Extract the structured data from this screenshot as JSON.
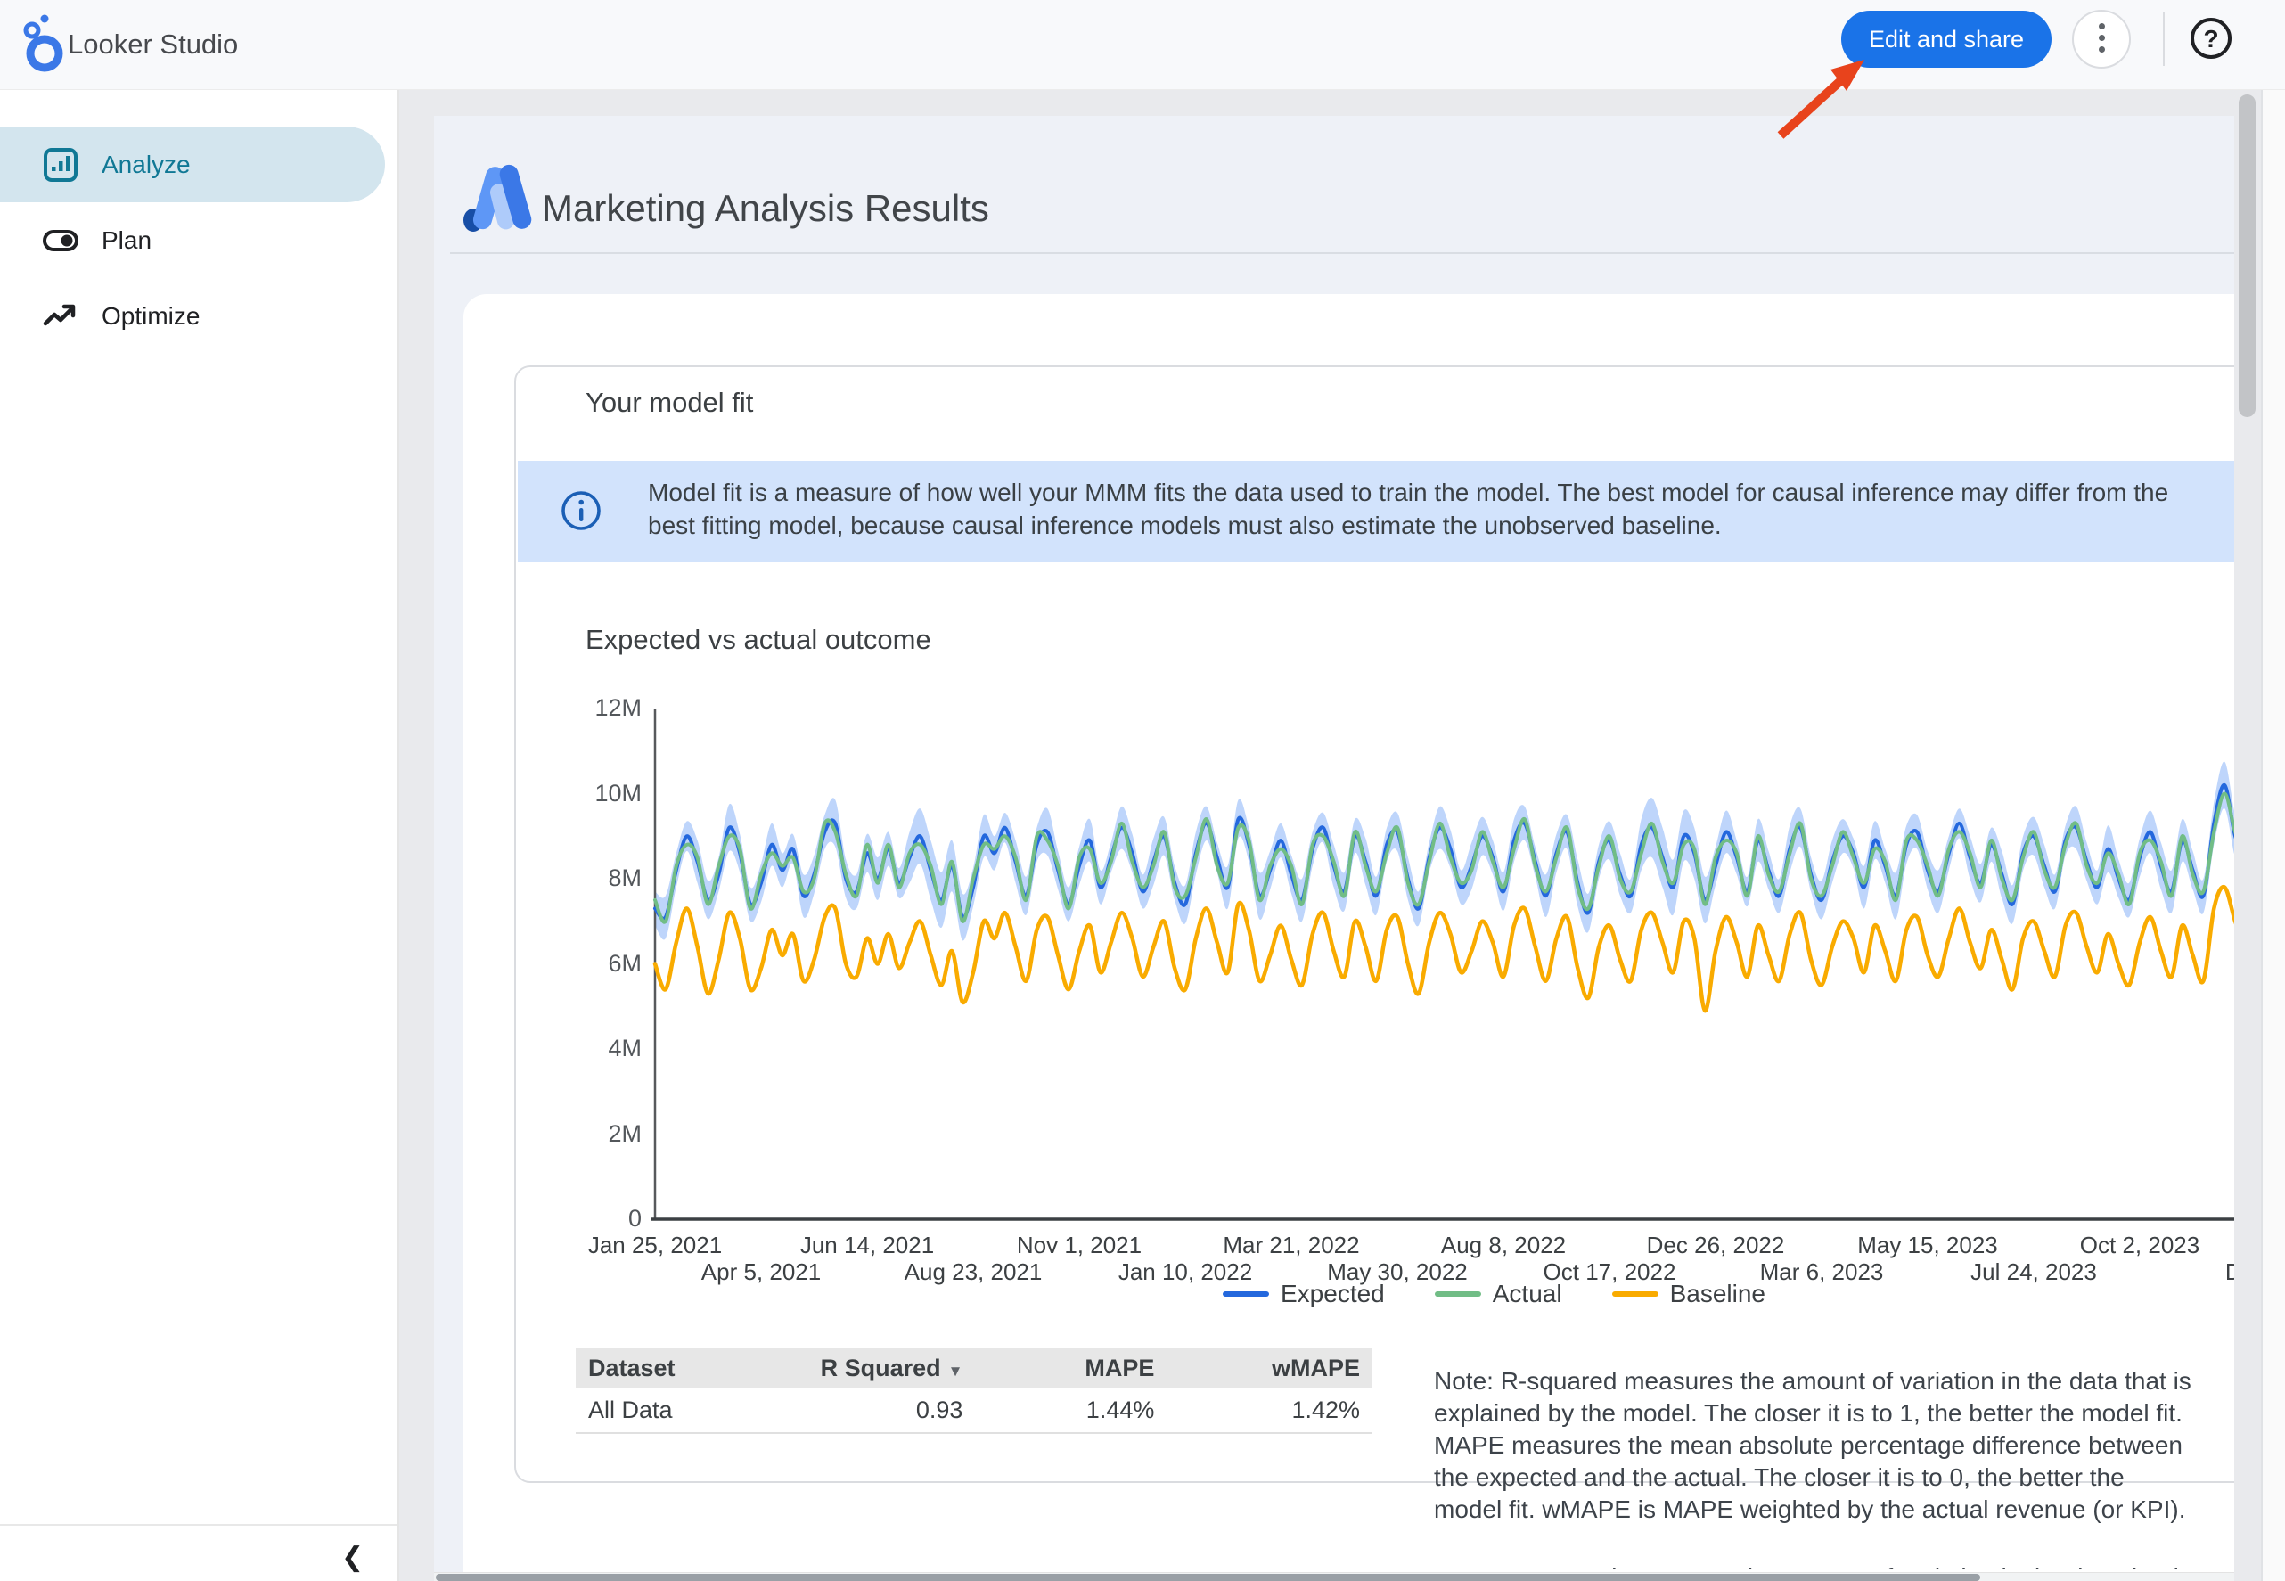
{
  "app": {
    "brand": "Looker Studio",
    "edit_share_label": "Edit and share",
    "help_glyph": "?",
    "accent_blue": "#1a73e8"
  },
  "sidebar": {
    "items": [
      {
        "label": "Analyze",
        "selected": true
      },
      {
        "label": "Plan",
        "selected": false
      },
      {
        "label": "Optimize",
        "selected": false
      }
    ],
    "selected_color": "#107895",
    "selected_bg": "#d3e5ee"
  },
  "report": {
    "title": "Marketing Analysis Results",
    "card_title": "Your model fit",
    "info_banner_lines": [
      "Model fit is a measure of how well your MMM fits the data used to train the model. The best model for causal inference may differ from the",
      "best fitting model, because causal inference models must also estimate the unobserved baseline."
    ],
    "section_title": "Expected vs actual outcome",
    "note_text": "Note: R-squared measures the amount of variation in the data that is explained by the model. The closer it is to 1, the better the model fit. MAPE measures the mean absolute percentage difference between the expected and the actual. The closer it is to 0, the better the model fit. wMAPE is MAPE weighted by the actual revenue (or KPI)."
  },
  "table": {
    "headers": [
      "Dataset",
      "R Squared",
      "MAPE",
      "wMAPE"
    ],
    "sort_column": "R Squared",
    "sort_glyph": "▼",
    "rows": [
      {
        "dataset": "All Data",
        "r_squared": "0.93",
        "mape": "1.44%",
        "wmape": "1.42%"
      }
    ]
  },
  "chart_data": {
    "type": "line",
    "title": "Expected vs actual outcome",
    "x_unit": "week",
    "ylim": [
      0,
      12000000
    ],
    "ytick_labels": [
      "0",
      "2M",
      "4M",
      "6M",
      "8M",
      "10M",
      "12M"
    ],
    "grid": false,
    "legend_position": "bottom",
    "values_unit": "millions",
    "x_ticks": [
      {
        "i": 0,
        "label": "Jan 25, 2021",
        "row": 1
      },
      {
        "i": 10,
        "label": "Apr 5, 2021",
        "row": 2
      },
      {
        "i": 20,
        "label": "Jun 14, 2021",
        "row": 1
      },
      {
        "i": 30,
        "label": "Aug 23, 2021",
        "row": 2
      },
      {
        "i": 40,
        "label": "Nov 1, 2021",
        "row": 1
      },
      {
        "i": 50,
        "label": "Jan 10, 2022",
        "row": 2
      },
      {
        "i": 60,
        "label": "Mar 21, 2022",
        "row": 1
      },
      {
        "i": 70,
        "label": "May 30, 2022",
        "row": 2
      },
      {
        "i": 80,
        "label": "Aug 8, 2022",
        "row": 1
      },
      {
        "i": 90,
        "label": "Oct 17, 2022",
        "row": 2
      },
      {
        "i": 100,
        "label": "Dec 26, 2022",
        "row": 1
      },
      {
        "i": 110,
        "label": "Mar 6, 2023",
        "row": 2
      },
      {
        "i": 120,
        "label": "May 15, 2023",
        "row": 1
      },
      {
        "i": 130,
        "label": "Jul 24, 2023",
        "row": 2
      },
      {
        "i": 140,
        "label": "Oct 2, 2023",
        "row": 1
      },
      {
        "i": 150,
        "label": "Dec",
        "row": 2
      }
    ],
    "series": [
      {
        "name": "Expected",
        "color": "#2468dd",
        "values": [
          7.3,
          7.1,
          8.2,
          9.0,
          8.4,
          7.5,
          8.1,
          9.2,
          8.6,
          7.4,
          7.9,
          8.8,
          8.2,
          8.7,
          7.6,
          8.1,
          9.1,
          9.3,
          8.0,
          7.7,
          8.6,
          8.0,
          8.7,
          7.9,
          8.5,
          9.0,
          8.2,
          7.5,
          8.3,
          7.1,
          7.8,
          9.0,
          8.6,
          9.2,
          8.4,
          7.6,
          8.8,
          9.1,
          8.2,
          7.4,
          8.3,
          8.9,
          7.8,
          8.5,
          9.2,
          8.6,
          7.7,
          8.4,
          9.0,
          7.9,
          7.4,
          8.6,
          9.3,
          8.5,
          7.8,
          9.4,
          8.8,
          7.6,
          8.2,
          8.9,
          8.1,
          7.5,
          8.7,
          9.2,
          8.3,
          7.7,
          9.0,
          8.4,
          7.6,
          8.8,
          9.1,
          8.0,
          7.3,
          8.5,
          9.2,
          8.7,
          7.8,
          8.3,
          9.0,
          8.5,
          7.7,
          8.9,
          9.3,
          8.4,
          7.6,
          8.6,
          9.1,
          7.9,
          7.2,
          8.4,
          8.9,
          8.1,
          7.6,
          8.8,
          9.2,
          8.5,
          7.8,
          9.0,
          8.6,
          7.5,
          8.3,
          9.1,
          8.5,
          7.7,
          8.9,
          8.2,
          7.6,
          8.7,
          9.2,
          8.1,
          7.5,
          8.4,
          9.0,
          8.6,
          7.8,
          8.9,
          8.3,
          7.6,
          8.8,
          9.1,
          8.2,
          7.7,
          8.6,
          9.3,
          8.5,
          7.9,
          8.8,
          8.1,
          7.4,
          8.6,
          9.0,
          8.3,
          7.7,
          8.9,
          9.2,
          8.4,
          7.8,
          8.7,
          8.0,
          7.5,
          8.5,
          9.1,
          8.3,
          7.7,
          8.9,
          8.2,
          7.6,
          9.3,
          10.2,
          9.0,
          8.6,
          8.8
        ]
      },
      {
        "name": "Actual",
        "color": "#71bd86",
        "values": [
          7.5,
          7.0,
          8.3,
          8.8,
          8.5,
          7.4,
          8.3,
          9.0,
          8.7,
          7.3,
          8.1,
          8.6,
          8.3,
          8.5,
          7.7,
          8.0,
          9.3,
          9.1,
          8.1,
          7.6,
          8.8,
          7.9,
          8.8,
          7.8,
          8.6,
          8.8,
          8.3,
          7.4,
          8.4,
          7.0,
          8.0,
          8.8,
          8.7,
          9.0,
          8.5,
          7.5,
          9.0,
          8.9,
          8.3,
          7.3,
          8.5,
          8.7,
          7.9,
          8.4,
          9.3,
          8.4,
          7.8,
          8.3,
          9.1,
          7.8,
          7.6,
          8.5,
          9.4,
          8.3,
          7.9,
          9.2,
          8.9,
          7.5,
          8.3,
          8.7,
          8.3,
          7.4,
          8.8,
          9.0,
          8.4,
          7.6,
          9.1,
          8.3,
          7.7,
          8.6,
          9.2,
          7.9,
          7.4,
          8.4,
          9.3,
          8.5,
          7.9,
          8.2,
          9.1,
          8.4,
          7.8,
          8.7,
          9.4,
          8.3,
          7.7,
          8.5,
          9.2,
          7.8,
          7.3,
          8.3,
          9.0,
          8.0,
          7.7,
          8.6,
          9.3,
          8.4,
          7.9,
          8.8,
          8.7,
          7.4,
          8.5,
          8.9,
          8.6,
          7.6,
          9.0,
          8.1,
          7.7,
          8.6,
          9.3,
          8.0,
          7.6,
          8.3,
          9.1,
          8.5,
          7.9,
          8.7,
          8.4,
          7.5,
          8.9,
          8.9,
          8.3,
          7.6,
          8.7,
          9.1,
          8.6,
          7.8,
          8.9,
          8.0,
          7.5,
          8.5,
          9.1,
          8.2,
          7.8,
          8.8,
          9.3,
          8.3,
          7.9,
          8.6,
          8.1,
          7.4,
          8.6,
          8.9,
          8.4,
          7.6,
          9.0,
          8.1,
          7.7,
          9.1,
          10.0,
          9.1,
          8.5,
          8.9
        ]
      },
      {
        "name": "Baseline",
        "color": "#f9ab00",
        "values": [
          6.0,
          5.4,
          6.5,
          7.3,
          6.4,
          5.3,
          6.1,
          7.2,
          6.6,
          5.4,
          5.9,
          6.8,
          6.2,
          6.7,
          5.6,
          6.1,
          7.1,
          7.3,
          6.0,
          5.7,
          6.6,
          6.0,
          6.7,
          5.9,
          6.5,
          7.0,
          6.2,
          5.5,
          6.3,
          5.1,
          5.8,
          7.0,
          6.6,
          7.2,
          6.4,
          5.6,
          6.8,
          7.1,
          6.2,
          5.4,
          6.3,
          6.9,
          5.8,
          6.5,
          7.2,
          6.6,
          5.7,
          6.4,
          7.0,
          5.9,
          5.4,
          6.6,
          7.3,
          6.5,
          5.8,
          7.4,
          6.8,
          5.6,
          6.2,
          6.9,
          6.1,
          5.5,
          6.7,
          7.2,
          6.3,
          5.7,
          7.0,
          6.4,
          5.6,
          6.8,
          7.1,
          6.0,
          5.3,
          6.5,
          7.2,
          6.7,
          5.8,
          6.3,
          7.0,
          6.5,
          5.7,
          6.9,
          7.3,
          6.4,
          5.6,
          6.6,
          7.1,
          5.9,
          5.2,
          6.4,
          6.9,
          6.1,
          5.6,
          6.8,
          7.2,
          6.5,
          5.8,
          7.0,
          6.6,
          4.9,
          6.3,
          7.1,
          6.5,
          5.7,
          6.9,
          6.2,
          5.6,
          6.7,
          7.2,
          6.1,
          5.5,
          6.4,
          7.0,
          6.6,
          5.8,
          6.9,
          6.3,
          5.6,
          6.8,
          7.1,
          6.2,
          5.7,
          6.6,
          7.3,
          6.5,
          5.9,
          6.8,
          6.1,
          5.4,
          6.6,
          7.0,
          6.3,
          5.7,
          6.9,
          7.2,
          6.4,
          5.8,
          6.7,
          6.0,
          5.5,
          6.5,
          7.1,
          6.3,
          5.7,
          6.9,
          6.2,
          5.6,
          7.3,
          7.8,
          7.0,
          6.4,
          6.5
        ]
      }
    ],
    "band": {
      "around_series": "Expected",
      "color": "#aecbfa",
      "opacity": 0.8,
      "halfwidth": [
        0.4,
        0.5,
        0.4,
        0.35,
        0.5,
        0.45,
        0.4,
        0.55,
        0.45,
        0.4,
        0.45,
        0.5,
        0.4,
        0.35,
        0.5,
        0.45,
        0.4,
        0.55,
        0.45,
        0.4,
        0.45,
        0.5,
        0.4,
        0.35,
        0.6,
        0.65,
        0.7,
        0.65,
        0.6,
        0.55,
        0.45,
        0.5,
        0.4,
        0.35,
        0.5,
        0.45,
        0.4,
        0.55,
        0.45,
        0.4,
        0.45,
        0.5,
        0.4,
        0.35,
        0.5,
        0.45,
        0.4,
        0.55,
        0.45,
        0.4,
        0.45,
        0.5,
        0.4,
        0.35,
        0.5,
        0.45,
        0.4,
        0.55,
        0.45,
        0.4,
        0.45,
        0.5,
        0.4,
        0.35,
        0.5,
        0.45,
        0.4,
        0.55,
        0.45,
        0.4,
        0.45,
        0.5,
        0.4,
        0.35,
        0.5,
        0.45,
        0.4,
        0.55,
        0.45,
        0.4,
        0.45,
        0.5,
        0.4,
        0.35,
        0.5,
        0.45,
        0.4,
        0.55,
        0.45,
        0.4,
        0.45,
        0.5,
        0.4,
        0.6,
        0.7,
        0.7,
        0.65,
        0.6,
        0.6,
        0.55,
        0.45,
        0.5,
        0.4,
        0.35,
        0.5,
        0.45,
        0.4,
        0.55,
        0.45,
        0.4,
        0.45,
        0.5,
        0.4,
        0.35,
        0.5,
        0.45,
        0.4,
        0.55,
        0.45,
        0.4,
        0.45,
        0.5,
        0.4,
        0.35,
        0.5,
        0.45,
        0.4,
        0.55,
        0.45,
        0.4,
        0.45,
        0.5,
        0.4,
        0.35,
        0.5,
        0.45,
        0.4,
        0.55,
        0.45,
        0.4,
        0.45,
        0.5,
        0.55,
        0.5,
        0.5,
        0.45,
        0.4,
        0.5,
        0.55,
        0.5,
        0.45,
        0.45
      ]
    }
  }
}
